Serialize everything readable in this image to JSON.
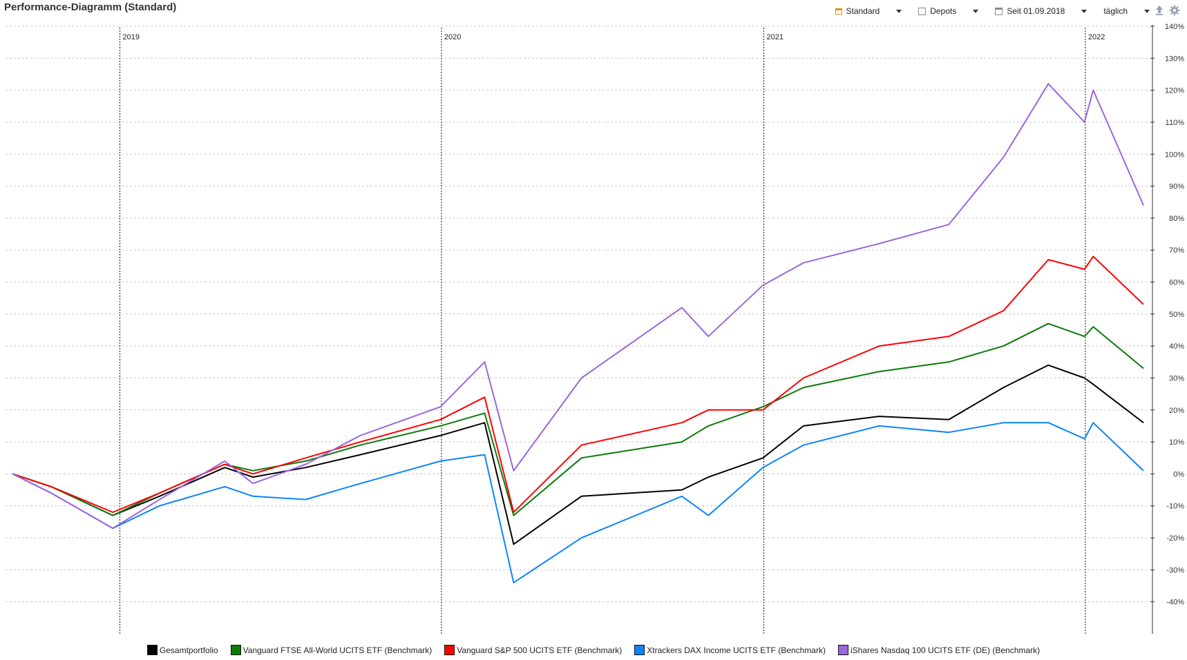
{
  "header": {
    "title": "Performance-Diagramm (Standard)"
  },
  "toolbar": {
    "view": "Standard",
    "depots": "Depots",
    "since": "Seit 01.09.2018",
    "interval": "täglich",
    "upload_icon": "upload-icon",
    "settings_icon": "gear-icon"
  },
  "chart_data": {
    "type": "line",
    "x_unit": "date",
    "x_range": [
      "2018-09-01",
      "2022-03-08"
    ],
    "year_markers": [
      {
        "label": "2019",
        "date": "2019-01-01"
      },
      {
        "label": "2020",
        "date": "2020-01-01"
      },
      {
        "label": "2021",
        "date": "2021-01-01"
      },
      {
        "label": "2022",
        "date": "2022-01-01"
      }
    ],
    "ylim": [
      -50,
      140
    ],
    "yticks": [
      "140%",
      "130%",
      "120%",
      "110%",
      "100%",
      "90%",
      "80%",
      "70%",
      "60%",
      "50%",
      "40%",
      "30%",
      "20%",
      "10%",
      "0%",
      "-10%",
      "-20%",
      "-30%",
      "-40%"
    ],
    "ytick_values": [
      140,
      130,
      120,
      110,
      100,
      90,
      80,
      70,
      60,
      50,
      40,
      30,
      20,
      10,
      0,
      -10,
      -20,
      -30,
      -40
    ],
    "grid": true,
    "legend_position": "bottom",
    "x": [
      "2018-09-01",
      "2018-10-15",
      "2018-12-24",
      "2019-02-15",
      "2019-04-30",
      "2019-06-01",
      "2019-07-31",
      "2019-10-01",
      "2019-12-31",
      "2020-02-19",
      "2020-03-23",
      "2020-06-08",
      "2020-09-30",
      "2020-10-30",
      "2020-12-31",
      "2021-02-15",
      "2021-05-12",
      "2021-07-30",
      "2021-09-30",
      "2021-11-20",
      "2021-12-31",
      "2022-01-10",
      "2022-03-08"
    ],
    "series": [
      {
        "name": "Gesamtportfolio",
        "color": "#000000",
        "values": [
          0,
          -4,
          -13,
          -7,
          2,
          -1,
          2,
          6,
          12,
          16,
          -22,
          -7,
          -5,
          -1,
          5,
          15,
          18,
          17,
          27,
          34,
          30,
          28,
          16
        ]
      },
      {
        "name": "Vanguard FTSE All-World UCITS ETF (Benchmark)",
        "color": "#0a7a0a",
        "values": [
          0,
          -4,
          -13,
          -6,
          3,
          1,
          4,
          9,
          15,
          19,
          -13,
          5,
          10,
          15,
          21,
          27,
          32,
          35,
          40,
          47,
          43,
          46,
          33
        ]
      },
      {
        "name": "Vanguard S&P 500 UCITS ETF (Benchmark)",
        "color": "#ff0000",
        "values": [
          0,
          -4,
          -12,
          -6,
          3,
          0,
          5,
          10,
          17,
          24,
          -12,
          9,
          16,
          20,
          20,
          30,
          40,
          43,
          51,
          67,
          64,
          68,
          53
        ]
      },
      {
        "name": "Xtrackers DAX Income UCITS ETF (Benchmark)",
        "color": "#0a84ff",
        "values": [
          0,
          -6,
          -17,
          -10,
          -4,
          -7,
          -8,
          -3,
          4,
          6,
          -34,
          -20,
          -7,
          -13,
          2,
          9,
          15,
          13,
          16,
          16,
          11,
          16,
          1
        ]
      },
      {
        "name": "iShares Nasdaq 100 UCITS ETF (DE) (Benchmark)",
        "color": "#9966dd",
        "values": [
          0,
          -6,
          -17,
          -8,
          4,
          -3,
          3,
          12,
          21,
          35,
          1,
          30,
          52,
          43,
          59,
          66,
          72,
          78,
          99,
          122,
          110,
          120,
          84
        ]
      }
    ]
  }
}
